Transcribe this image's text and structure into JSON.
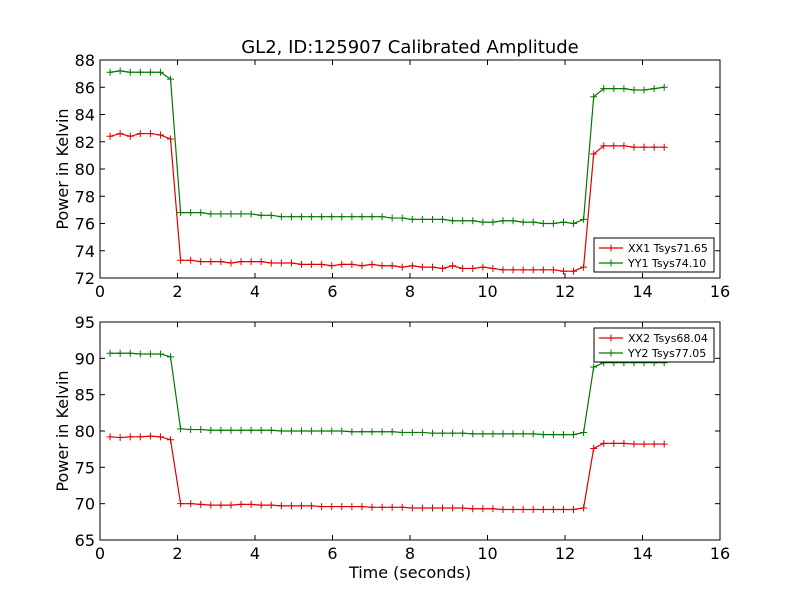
{
  "figure": {
    "title": "GL2, ID:125907 Calibrated Amplitude",
    "xlabel": "Time (seconds)"
  },
  "colors": {
    "xx": "#e00000",
    "yy": "#007a00"
  },
  "chart_data": [
    {
      "type": "line",
      "ylabel": "Power in Kelvin",
      "xlim": [
        0,
        16
      ],
      "ylim": [
        72,
        88
      ],
      "xticks": [
        0,
        2,
        4,
        6,
        8,
        10,
        12,
        14,
        16
      ],
      "yticks": [
        72,
        74,
        76,
        78,
        80,
        82,
        84,
        86,
        88
      ],
      "legend_position": "bottom-right",
      "x": [
        0.26,
        0.52,
        0.78,
        1.04,
        1.3,
        1.56,
        1.82,
        2.08,
        2.34,
        2.6,
        2.86,
        3.12,
        3.38,
        3.64,
        3.9,
        4.16,
        4.42,
        4.68,
        4.94,
        5.2,
        5.46,
        5.72,
        5.98,
        6.24,
        6.5,
        6.76,
        7.02,
        7.28,
        7.54,
        7.8,
        8.06,
        8.32,
        8.58,
        8.84,
        9.1,
        9.36,
        9.62,
        9.88,
        10.14,
        10.4,
        10.66,
        10.92,
        11.18,
        11.44,
        11.7,
        11.96,
        12.22,
        12.48,
        12.74,
        13.0,
        13.26,
        13.52,
        13.78,
        14.04,
        14.3,
        14.56
      ],
      "series": [
        {
          "name": "XX1 Tsys71.65",
          "color_key": "xx",
          "values": [
            82.4,
            82.6,
            82.4,
            82.6,
            82.6,
            82.5,
            82.2,
            73.3,
            73.3,
            73.2,
            73.2,
            73.2,
            73.1,
            73.2,
            73.2,
            73.2,
            73.1,
            73.1,
            73.1,
            73.0,
            73.0,
            73.0,
            72.9,
            73.0,
            73.0,
            72.9,
            73.0,
            72.9,
            72.9,
            72.8,
            72.9,
            72.8,
            72.8,
            72.7,
            72.9,
            72.7,
            72.7,
            72.8,
            72.7,
            72.6,
            72.6,
            72.6,
            72.6,
            72.6,
            72.6,
            72.5,
            72.5,
            72.8,
            81.1,
            81.7,
            81.7,
            81.7,
            81.6,
            81.6,
            81.6,
            81.6
          ]
        },
        {
          "name": "YY1 Tsys74.10",
          "color_key": "yy",
          "values": [
            87.1,
            87.2,
            87.1,
            87.1,
            87.1,
            87.1,
            86.6,
            76.8,
            76.8,
            76.8,
            76.7,
            76.7,
            76.7,
            76.7,
            76.7,
            76.6,
            76.6,
            76.5,
            76.5,
            76.5,
            76.5,
            76.5,
            76.5,
            76.5,
            76.5,
            76.5,
            76.5,
            76.5,
            76.4,
            76.4,
            76.3,
            76.3,
            76.3,
            76.3,
            76.2,
            76.2,
            76.2,
            76.1,
            76.1,
            76.2,
            76.2,
            76.1,
            76.1,
            76.0,
            76.0,
            76.1,
            76.0,
            76.3,
            85.3,
            85.9,
            85.9,
            85.9,
            85.8,
            85.8,
            85.9,
            86.0
          ]
        }
      ]
    },
    {
      "type": "line",
      "ylabel": "Power in Kelvin",
      "xlim": [
        0,
        16
      ],
      "ylim": [
        65,
        95
      ],
      "xticks": [
        0,
        2,
        4,
        6,
        8,
        10,
        12,
        14,
        16
      ],
      "yticks": [
        65,
        70,
        75,
        80,
        85,
        90,
        95
      ],
      "legend_position": "top-right",
      "x": [
        0.26,
        0.52,
        0.78,
        1.04,
        1.3,
        1.56,
        1.82,
        2.08,
        2.34,
        2.6,
        2.86,
        3.12,
        3.38,
        3.64,
        3.9,
        4.16,
        4.42,
        4.68,
        4.94,
        5.2,
        5.46,
        5.72,
        5.98,
        6.24,
        6.5,
        6.76,
        7.02,
        7.28,
        7.54,
        7.8,
        8.06,
        8.32,
        8.58,
        8.84,
        9.1,
        9.36,
        9.62,
        9.88,
        10.14,
        10.4,
        10.66,
        10.92,
        11.18,
        11.44,
        11.7,
        11.96,
        12.22,
        12.48,
        12.74,
        13.0,
        13.26,
        13.52,
        13.78,
        14.04,
        14.3,
        14.56
      ],
      "series": [
        {
          "name": "XX2 Tsys68.04",
          "color_key": "xx",
          "values": [
            79.2,
            79.1,
            79.2,
            79.2,
            79.3,
            79.2,
            78.8,
            70.0,
            70.0,
            69.9,
            69.8,
            69.8,
            69.8,
            69.9,
            69.9,
            69.8,
            69.8,
            69.7,
            69.7,
            69.7,
            69.7,
            69.6,
            69.6,
            69.6,
            69.6,
            69.6,
            69.5,
            69.5,
            69.5,
            69.5,
            69.4,
            69.4,
            69.4,
            69.4,
            69.4,
            69.4,
            69.3,
            69.3,
            69.3,
            69.2,
            69.2,
            69.2,
            69.2,
            69.2,
            69.2,
            69.2,
            69.2,
            69.4,
            77.6,
            78.3,
            78.3,
            78.3,
            78.2,
            78.2,
            78.2,
            78.2
          ]
        },
        {
          "name": "YY2 Tsys77.05",
          "color_key": "yy",
          "values": [
            90.7,
            90.7,
            90.7,
            90.6,
            90.6,
            90.6,
            90.2,
            80.3,
            80.2,
            80.2,
            80.1,
            80.1,
            80.1,
            80.1,
            80.1,
            80.1,
            80.1,
            80.0,
            80.0,
            80.0,
            80.0,
            80.0,
            80.0,
            80.0,
            79.9,
            79.9,
            79.9,
            79.9,
            79.9,
            79.8,
            79.8,
            79.8,
            79.7,
            79.7,
            79.7,
            79.7,
            79.6,
            79.6,
            79.6,
            79.6,
            79.6,
            79.6,
            79.6,
            79.5,
            79.5,
            79.5,
            79.5,
            79.8,
            88.8,
            89.4,
            89.4,
            89.4,
            89.4,
            89.4,
            89.4,
            89.4
          ]
        }
      ]
    }
  ]
}
